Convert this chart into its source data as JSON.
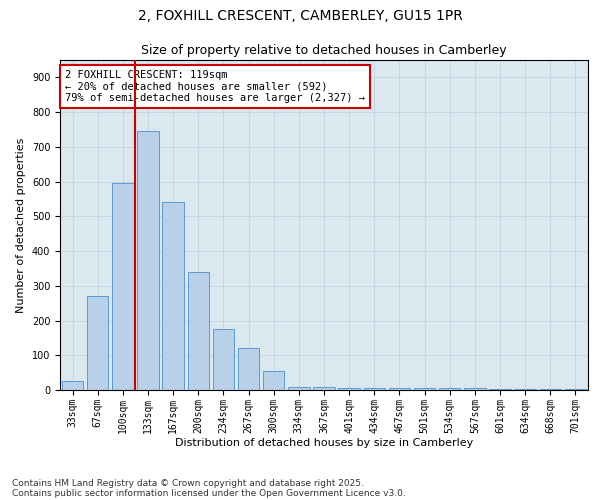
{
  "title_line1": "2, FOXHILL CRESCENT, CAMBERLEY, GU15 1PR",
  "title_line2": "Size of property relative to detached houses in Camberley",
  "xlabel": "Distribution of detached houses by size in Camberley",
  "ylabel": "Number of detached properties",
  "categories": [
    "33sqm",
    "67sqm",
    "100sqm",
    "133sqm",
    "167sqm",
    "200sqm",
    "234sqm",
    "267sqm",
    "300sqm",
    "334sqm",
    "367sqm",
    "401sqm",
    "434sqm",
    "467sqm",
    "501sqm",
    "534sqm",
    "567sqm",
    "601sqm",
    "634sqm",
    "668sqm",
    "701sqm"
  ],
  "values": [
    25,
    270,
    595,
    745,
    540,
    340,
    175,
    120,
    55,
    10,
    10,
    5,
    5,
    5,
    5,
    5,
    5,
    3,
    3,
    3,
    3
  ],
  "bar_color": "#b8d0e8",
  "bar_edge_color": "#5b9bd5",
  "vline_color": "#cc0000",
  "annotation_text": "2 FOXHILL CRESCENT: 119sqm\n← 20% of detached houses are smaller (592)\n79% of semi-detached houses are larger (2,327) →",
  "annotation_box_color": "#cc0000",
  "ylim": [
    0,
    950
  ],
  "yticks": [
    0,
    100,
    200,
    300,
    400,
    500,
    600,
    700,
    800,
    900
  ],
  "background_color": "#dce8f0",
  "footer_line1": "Contains HM Land Registry data © Crown copyright and database right 2025.",
  "footer_line2": "Contains public sector information licensed under the Open Government Licence v3.0.",
  "title_fontsize": 10,
  "subtitle_fontsize": 9,
  "axis_label_fontsize": 8,
  "tick_fontsize": 7,
  "annotation_fontsize": 7.5,
  "footer_fontsize": 6.5
}
